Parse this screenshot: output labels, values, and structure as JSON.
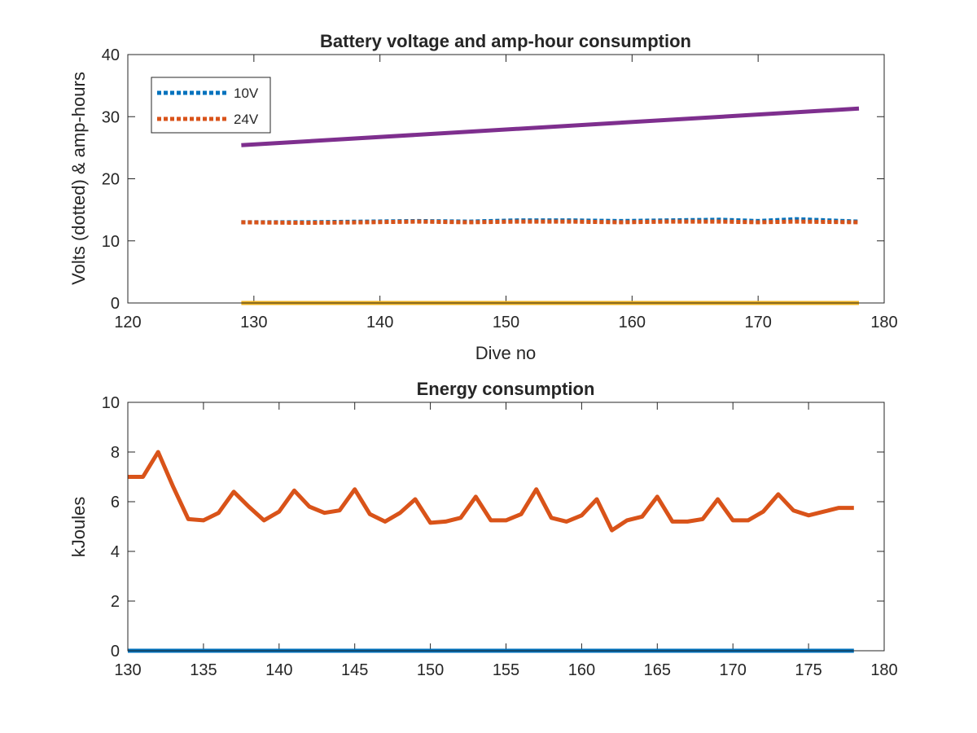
{
  "chart_data": [
    {
      "type": "line",
      "title": "Battery voltage and amp-hour consumption",
      "xlabel": "Dive no",
      "ylabel": "Volts (dotted) & amp-hours",
      "xlim": [
        120,
        180
      ],
      "ylim": [
        0,
        40
      ],
      "xticks": [
        120,
        130,
        140,
        150,
        160,
        170,
        180
      ],
      "yticks": [
        0,
        10,
        20,
        30,
        40
      ],
      "grid": false,
      "legend": {
        "placement": "top-left",
        "entries": [
          "10V",
          "24V"
        ]
      },
      "series": [
        {
          "name": "10V",
          "style": "dotted",
          "color": "#0072BD",
          "x": [
            129,
            134,
            139,
            143,
            147,
            151,
            155,
            159,
            163,
            167,
            170,
            173,
            178
          ],
          "y": [
            13.0,
            13.0,
            13.1,
            13.2,
            13.1,
            13.3,
            13.3,
            13.2,
            13.3,
            13.4,
            13.2,
            13.5,
            13.1
          ]
        },
        {
          "name": "24V",
          "style": "dotted",
          "color": "#D95319",
          "x": [
            129,
            134,
            139,
            143,
            147,
            151,
            155,
            159,
            163,
            167,
            170,
            173,
            178
          ],
          "y": [
            13.0,
            12.9,
            13.0,
            13.1,
            13.0,
            13.1,
            13.1,
            13.0,
            13.1,
            13.1,
            13.0,
            13.1,
            13.0
          ]
        },
        {
          "style": "solid",
          "color": "#EDB120",
          "x": [
            129,
            178
          ],
          "y": [
            0,
            0
          ]
        },
        {
          "style": "solid",
          "color": "#7E2F8E",
          "x": [
            129,
            178
          ],
          "y": [
            25.4,
            31.3
          ]
        }
      ]
    },
    {
      "type": "line",
      "title": "Energy consumption",
      "xlabel": "",
      "ylabel": "kJoules",
      "xlim": [
        130,
        180
      ],
      "ylim": [
        0,
        10
      ],
      "xticks": [
        130,
        135,
        140,
        145,
        150,
        155,
        160,
        165,
        170,
        175,
        180
      ],
      "yticks": [
        0,
        2,
        4,
        6,
        8,
        10
      ],
      "grid": false,
      "series": [
        {
          "style": "solid",
          "color": "#0072BD",
          "x": [
            130,
            178
          ],
          "y": [
            0,
            0
          ]
        },
        {
          "style": "solid",
          "color": "#D95319",
          "x": [
            130,
            131,
            132,
            133,
            134,
            135,
            136,
            137,
            138,
            139,
            140,
            141,
            142,
            143,
            144,
            145,
            146,
            147,
            148,
            149,
            150,
            151,
            152,
            153,
            154,
            155,
            156,
            157,
            158,
            159,
            160,
            161,
            162,
            163,
            164,
            165,
            166,
            167,
            168,
            169,
            170,
            171,
            172,
            173,
            174,
            175,
            176,
            177,
            178
          ],
          "y": [
            7.0,
            7.0,
            8.0,
            6.6,
            5.3,
            5.25,
            5.55,
            6.4,
            5.8,
            5.25,
            5.6,
            6.45,
            5.8,
            5.55,
            5.65,
            6.5,
            5.5,
            5.2,
            5.55,
            6.1,
            5.15,
            5.2,
            5.35,
            6.2,
            5.25,
            5.25,
            5.5,
            6.5,
            5.35,
            5.2,
            5.45,
            6.1,
            4.85,
            5.25,
            5.4,
            6.2,
            5.2,
            5.2,
            5.3,
            6.1,
            5.25,
            5.25,
            5.6,
            6.3,
            5.65,
            5.45,
            5.6,
            5.75,
            5.75
          ]
        }
      ]
    }
  ]
}
